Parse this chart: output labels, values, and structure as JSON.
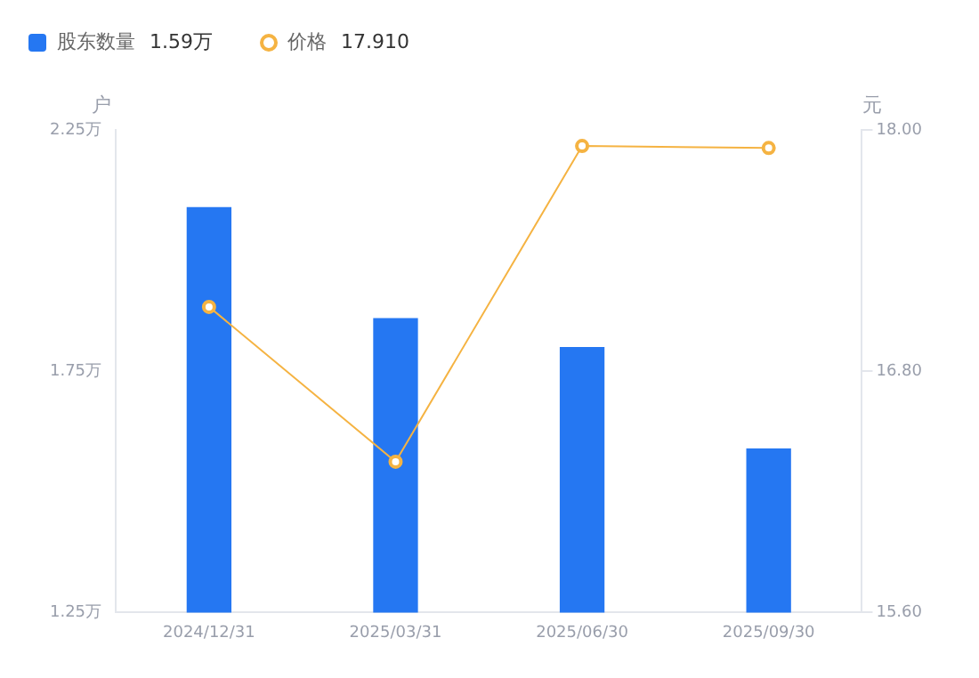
{
  "chart_data": {
    "type": "bar",
    "categories": [
      "2024/12/31",
      "2025/03/31",
      "2025/06/30",
      "2025/09/30"
    ],
    "series": [
      {
        "name": "股东数量",
        "color": "#2577f2",
        "values": [
          2.09,
          1.86,
          1.8,
          1.59
        ]
      },
      {
        "name": "价格",
        "type": "line",
        "axis": "y2",
        "color": "#f5b342",
        "marker": "circle",
        "values": [
          17.12,
          16.35,
          17.92,
          17.91
        ]
      }
    ],
    "ylabel": "户",
    "y2label": "元",
    "ylim": [
      1.25,
      2.25
    ],
    "yticks": [
      {
        "value": 1.25,
        "label": "1.25万"
      },
      {
        "value": 1.75,
        "label": "1.75万"
      },
      {
        "value": 2.25,
        "label": "2.25万"
      }
    ],
    "y2lim": [
      15.6,
      18.0
    ],
    "y2ticks": [
      {
        "value": 15.6,
        "label": "15.60"
      },
      {
        "value": 16.8,
        "label": "16.80"
      },
      {
        "value": 18.0,
        "label": "18.00"
      }
    ],
    "annotations": [
      "1.59万",
      "17.910"
    ],
    "legend": "top left",
    "grid": false
  }
}
